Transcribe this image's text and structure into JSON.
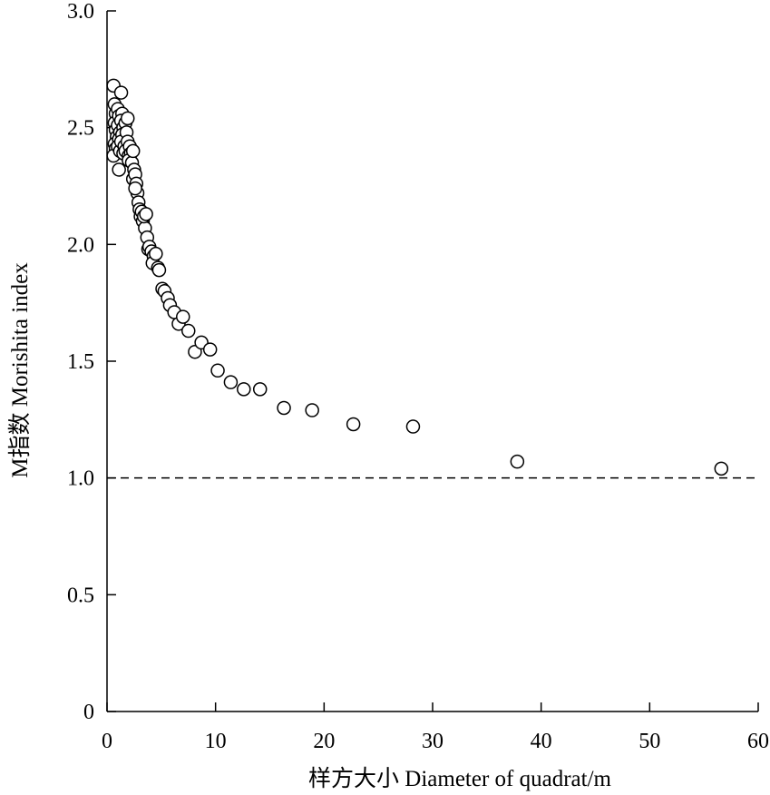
{
  "chart_data": {
    "type": "scatter",
    "title": "",
    "xlabel": "样方大小 Diameter of quadrat/m",
    "ylabel": "M指数 Morishita index",
    "xlim": [
      0,
      60
    ],
    "ylim": [
      0,
      3.0
    ],
    "x_ticks": [
      "0",
      "10",
      "20",
      "30",
      "40",
      "50",
      "60"
    ],
    "y_ticks": [
      "0",
      "0.5",
      "1.0",
      "1.5",
      "2.0",
      "2.5",
      "3.0"
    ],
    "grid": false,
    "legend": "none",
    "marker": "open-circle",
    "reference_line": {
      "y": 1.0,
      "style": "dashed"
    },
    "points": [
      [
        0.6,
        2.68
      ],
      [
        0.7,
        2.6
      ],
      [
        0.8,
        2.56
      ],
      [
        0.7,
        2.52
      ],
      [
        0.8,
        2.49
      ],
      [
        0.9,
        2.46
      ],
      [
        0.7,
        2.43
      ],
      [
        0.8,
        2.41
      ],
      [
        0.6,
        2.38
      ],
      [
        1.0,
        2.58
      ],
      [
        1.1,
        2.55
      ],
      [
        1.0,
        2.51
      ],
      [
        1.2,
        2.48
      ],
      [
        1.1,
        2.45
      ],
      [
        1.0,
        2.42
      ],
      [
        1.2,
        2.4
      ],
      [
        1.3,
        2.65
      ],
      [
        1.4,
        2.56
      ],
      [
        1.3,
        2.53
      ],
      [
        1.5,
        2.5
      ],
      [
        1.4,
        2.47
      ],
      [
        1.3,
        2.44
      ],
      [
        1.6,
        2.42
      ],
      [
        1.5,
        2.39
      ],
      [
        1.1,
        2.32
      ],
      [
        1.7,
        2.52
      ],
      [
        1.8,
        2.48
      ],
      [
        1.9,
        2.44
      ],
      [
        1.7,
        2.4
      ],
      [
        2.0,
        2.38
      ],
      [
        1.9,
        2.54
      ],
      [
        2.1,
        2.42
      ],
      [
        2.2,
        2.39
      ],
      [
        2.0,
        2.36
      ],
      [
        2.3,
        2.35
      ],
      [
        2.4,
        2.4
      ],
      [
        2.5,
        2.32
      ],
      [
        2.4,
        2.28
      ],
      [
        2.6,
        2.3
      ],
      [
        2.7,
        2.26
      ],
      [
        2.8,
        2.22
      ],
      [
        2.6,
        2.24
      ],
      [
        2.9,
        2.18
      ],
      [
        3.0,
        2.15
      ],
      [
        3.1,
        2.12
      ],
      [
        3.2,
        2.14
      ],
      [
        3.3,
        2.1
      ],
      [
        3.5,
        2.07
      ],
      [
        3.4,
        2.12
      ],
      [
        3.6,
        2.13
      ],
      [
        3.7,
        2.03
      ],
      [
        3.8,
        1.98
      ],
      [
        3.9,
        1.99
      ],
      [
        4.1,
        1.97
      ],
      [
        4.3,
        1.95
      ],
      [
        4.2,
        1.92
      ],
      [
        4.5,
        1.96
      ],
      [
        4.7,
        1.9
      ],
      [
        4.8,
        1.89
      ],
      [
        5.1,
        1.81
      ],
      [
        5.3,
        1.8
      ],
      [
        5.6,
        1.77
      ],
      [
        5.8,
        1.74
      ],
      [
        6.2,
        1.71
      ],
      [
        6.6,
        1.66
      ],
      [
        7.0,
        1.69
      ],
      [
        7.5,
        1.63
      ],
      [
        8.1,
        1.54
      ],
      [
        8.7,
        1.58
      ],
      [
        9.5,
        1.55
      ],
      [
        10.2,
        1.46
      ],
      [
        11.4,
        1.41
      ],
      [
        12.6,
        1.38
      ],
      [
        14.1,
        1.38
      ],
      [
        16.3,
        1.3
      ],
      [
        18.9,
        1.29
      ],
      [
        22.7,
        1.23
      ],
      [
        28.2,
        1.22
      ],
      [
        37.8,
        1.07
      ],
      [
        56.6,
        1.04
      ]
    ]
  }
}
